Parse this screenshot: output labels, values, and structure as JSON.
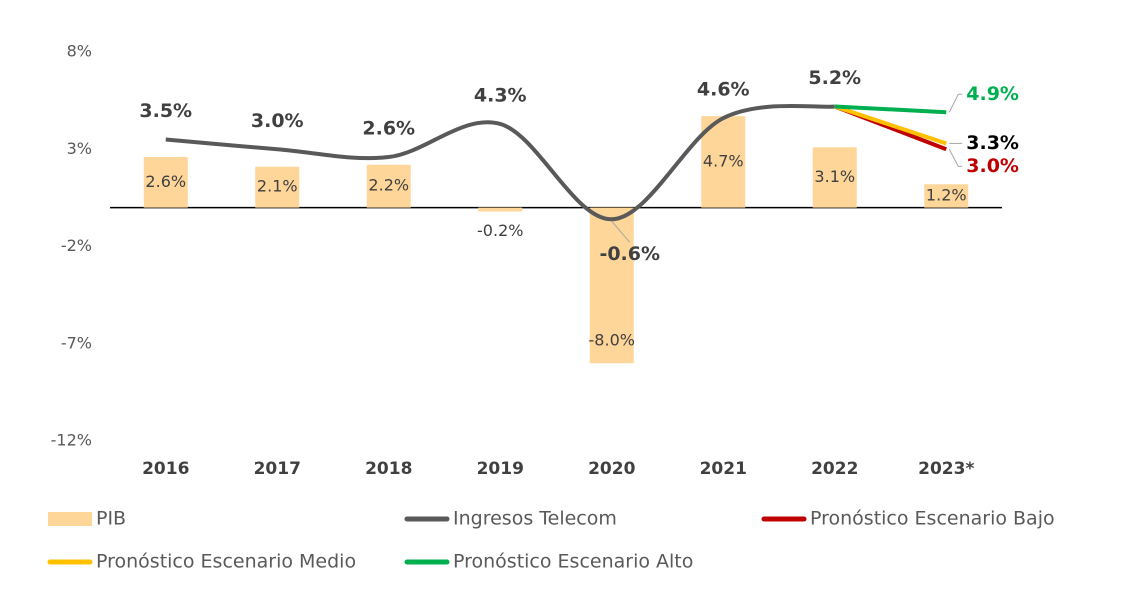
{
  "chart_data": {
    "type": "bar",
    "categories": [
      "2016",
      "2017",
      "2018",
      "2019",
      "2020",
      "2021",
      "2022",
      "2023*"
    ],
    "ylim": [
      -12,
      8
    ],
    "yticks": [
      {
        "value": 8,
        "label": "8%"
      },
      {
        "value": 3,
        "label": "3%"
      },
      {
        "value": -2,
        "label": "-2%"
      },
      {
        "value": -7,
        "label": "-7%"
      },
      {
        "value": -12,
        "label": "-12%"
      }
    ],
    "series": [
      {
        "name": "PIB",
        "type": "bar",
        "color": "#ffd699",
        "values": [
          2.6,
          2.1,
          2.2,
          -0.2,
          -8.0,
          4.7,
          3.1,
          1.2
        ],
        "value_labels": [
          "2.6%",
          "2.1%",
          "2.2%",
          "-0.2%",
          "-8.0%",
          "4.7%",
          "3.1%",
          "1.2%"
        ]
      },
      {
        "name": "Ingresos Telecom",
        "type": "line",
        "color": "#595959",
        "values": [
          3.5,
          3.0,
          2.6,
          4.3,
          -0.6,
          4.6,
          5.2,
          null
        ],
        "value_labels": [
          "3.5%",
          "3.0%",
          "2.6%",
          "4.3%",
          "-0.6%",
          "4.6%",
          "5.2%",
          null
        ]
      },
      {
        "name": "Pronóstico Escenario Bajo",
        "type": "forecast",
        "color": "#c00000",
        "values": [
          null,
          null,
          null,
          null,
          null,
          null,
          5.2,
          3.0
        ],
        "value_labels": [
          null,
          null,
          null,
          null,
          null,
          null,
          null,
          "3.0%"
        ]
      },
      {
        "name": "Pronóstico Escenario Medio",
        "type": "forecast",
        "color": "#ffc000",
        "label_color": "#000000",
        "values": [
          null,
          null,
          null,
          null,
          null,
          null,
          5.2,
          3.3
        ],
        "value_labels": [
          null,
          null,
          null,
          null,
          null,
          null,
          null,
          "3.3%"
        ]
      },
      {
        "name": "Pronóstico Escenario Alto",
        "type": "forecast",
        "color": "#00b050",
        "values": [
          null,
          null,
          null,
          null,
          null,
          null,
          5.2,
          4.9
        ],
        "value_labels": [
          null,
          null,
          null,
          null,
          null,
          null,
          null,
          "4.9%"
        ]
      }
    ]
  }
}
